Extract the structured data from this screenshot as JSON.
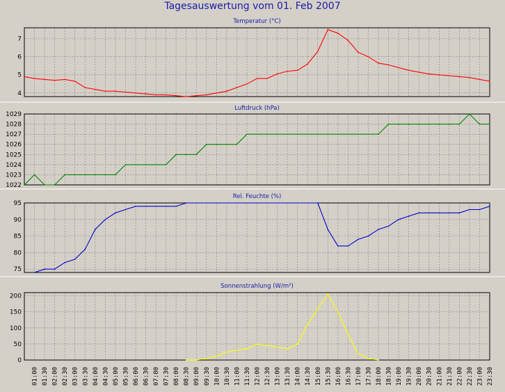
{
  "page_title": "Tagesauswertung vom 01. Feb 2007",
  "chart_data": [
    {
      "type": "line",
      "title": "Temperatur (°C)",
      "color": "#ff0000",
      "ylim": [
        3.8,
        7.6
      ],
      "yticks": [
        4,
        5,
        6,
        7
      ],
      "x": [
        "00:30",
        "01:00",
        "01:30",
        "02:00",
        "02:30",
        "03:00",
        "03:30",
        "04:00",
        "04:30",
        "05:00",
        "05:30",
        "06:00",
        "06:30",
        "07:00",
        "07:30",
        "08:00",
        "08:30",
        "09:00",
        "09:30",
        "10:00",
        "10:30",
        "11:00",
        "11:30",
        "12:00",
        "12:30",
        "13:00",
        "13:30",
        "14:00",
        "14:30",
        "15:00",
        "15:30",
        "16:00",
        "16:30",
        "17:00",
        "17:30",
        "18:00",
        "18:30",
        "19:00",
        "19:30",
        "20:00",
        "20:30",
        "21:00",
        "21:30",
        "22:00",
        "22:30",
        "23:00",
        "23:30"
      ],
      "values": [
        4.9,
        4.8,
        4.75,
        4.7,
        4.75,
        4.65,
        4.3,
        4.2,
        4.1,
        4.1,
        4.05,
        4.0,
        3.95,
        3.9,
        3.9,
        3.85,
        3.8,
        3.85,
        3.9,
        4.0,
        4.1,
        4.3,
        4.5,
        4.8,
        4.8,
        5.05,
        5.2,
        5.25,
        5.6,
        6.3,
        7.5,
        7.3,
        6.9,
        6.25,
        6.0,
        5.65,
        5.55,
        5.4,
        5.25,
        5.15,
        5.05,
        5.0,
        4.95,
        4.9,
        4.85,
        4.75,
        4.65
      ]
    },
    {
      "type": "line",
      "title": "Luftdruck (hPa)",
      "color": "#008000",
      "ylim": [
        1022,
        1029
      ],
      "yticks": [
        1022,
        1023,
        1024,
        1025,
        1026,
        1027,
        1028,
        1029
      ],
      "x": [
        "00:30",
        "01:00",
        "01:30",
        "02:00",
        "02:30",
        "03:00",
        "03:30",
        "04:00",
        "04:30",
        "05:00",
        "05:30",
        "06:00",
        "06:30",
        "07:00",
        "07:30",
        "08:00",
        "08:30",
        "09:00",
        "09:30",
        "10:00",
        "10:30",
        "11:00",
        "11:30",
        "12:00",
        "12:30",
        "13:00",
        "13:30",
        "14:00",
        "14:30",
        "15:00",
        "15:30",
        "16:00",
        "16:30",
        "17:00",
        "17:30",
        "18:00",
        "18:30",
        "19:00",
        "19:30",
        "20:00",
        "20:30",
        "21:00",
        "21:30",
        "22:00",
        "22:30",
        "23:00",
        "23:30"
      ],
      "values": [
        1022,
        1023,
        1022,
        1022,
        1023,
        1023,
        1023,
        1023,
        1023,
        1023,
        1024,
        1024,
        1024,
        1024,
        1024,
        1025,
        1025,
        1025,
        1026,
        1026,
        1026,
        1026,
        1027,
        1027,
        1027,
        1027,
        1027,
        1027,
        1027,
        1027,
        1027,
        1027,
        1027,
        1027,
        1027,
        1027,
        1028,
        1028,
        1028,
        1028,
        1028,
        1028,
        1028,
        1028,
        1029,
        1028,
        1028
      ]
    },
    {
      "type": "line",
      "title": "Rel. Feuchte (%)",
      "color": "#0000c8",
      "ylim": [
        74,
        95
      ],
      "yticks": [
        75,
        80,
        85,
        90,
        95
      ],
      "x": [
        "01:00",
        "01:30",
        "02:00",
        "02:30",
        "03:00",
        "03:30",
        "04:00",
        "04:30",
        "05:00",
        "05:30",
        "06:00",
        "06:30",
        "07:00",
        "07:30",
        "08:00",
        "08:30",
        "15:00",
        "15:30",
        "16:00",
        "16:30",
        "17:00",
        "17:30",
        "18:00",
        "18:30",
        "19:00",
        "19:30",
        "20:00",
        "20:30",
        "21:00",
        "21:30",
        "22:00",
        "22:30",
        "23:00",
        "23:30"
      ],
      "values": [
        74,
        75,
        75,
        77,
        78,
        81,
        87,
        90,
        92,
        93,
        94,
        94,
        94,
        94,
        94,
        95,
        95,
        87,
        82,
        82,
        84,
        85,
        87,
        88,
        90,
        91,
        92,
        92,
        92,
        92,
        92,
        93,
        93,
        94
      ]
    },
    {
      "type": "line",
      "title": "Sonnenstrahlung (W/m²)",
      "color": "#ffff00",
      "ylim": [
        0,
        210
      ],
      "yticks": [
        0,
        50,
        100,
        150,
        200
      ],
      "x": [
        "08:30",
        "09:00",
        "09:30",
        "10:00",
        "10:30",
        "11:00",
        "11:30",
        "12:00",
        "12:30",
        "13:00",
        "13:30",
        "14:00",
        "14:30",
        "15:00",
        "15:30",
        "16:00",
        "16:30",
        "17:00",
        "17:30",
        "18:00"
      ],
      "values": [
        0,
        0,
        5,
        12,
        25,
        30,
        35,
        50,
        45,
        40,
        35,
        50,
        110,
        160,
        205,
        150,
        80,
        20,
        5,
        0
      ]
    }
  ],
  "x_ticks": [
    "01:00",
    "01:30",
    "02:00",
    "02:30",
    "03:00",
    "03:30",
    "04:00",
    "04:30",
    "05:00",
    "05:30",
    "06:00",
    "06:30",
    "07:00",
    "07:30",
    "08:00",
    "08:30",
    "09:00",
    "09:30",
    "10:00",
    "10:30",
    "11:00",
    "11:30",
    "12:00",
    "12:30",
    "13:00",
    "13:30",
    "14:00",
    "14:30",
    "15:00",
    "15:30",
    "16:00",
    "16:30",
    "17:00",
    "17:30",
    "18:00",
    "18:30",
    "19:00",
    "19:30",
    "20:00",
    "20:30",
    "21:00",
    "21:30",
    "22:00",
    "22:30",
    "23:00",
    "23:30"
  ]
}
